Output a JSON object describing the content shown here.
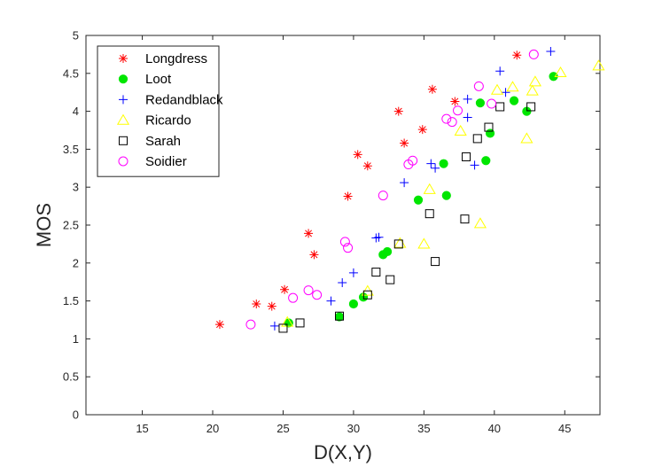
{
  "chart_data": {
    "type": "scatter",
    "title": "",
    "xlabel": "D(X,Y)",
    "ylabel": "MOS",
    "xlim": [
      11,
      47.5
    ],
    "ylim": [
      0,
      5
    ],
    "xticks": [
      15,
      20,
      25,
      30,
      35,
      40,
      45
    ],
    "yticks": [
      0,
      0.5,
      1,
      1.5,
      2,
      2.5,
      3,
      3.5,
      4,
      4.5,
      5
    ],
    "xtick_labels": [
      "15",
      "20",
      "25",
      "30",
      "35",
      "40",
      "45"
    ],
    "ytick_labels": [
      "0",
      "0.5",
      "1",
      "1.5",
      "2",
      "2.5",
      "3",
      "3.5",
      "4",
      "4.5",
      "5"
    ],
    "grid": false,
    "legend_position": "top-left",
    "series": [
      {
        "name": "Longdress",
        "marker": "asterisk",
        "color": "#ff0000",
        "points": [
          [
            20.5,
            1.19
          ],
          [
            23.1,
            1.46
          ],
          [
            24.2,
            1.43
          ],
          [
            25.1,
            1.65
          ],
          [
            26.8,
            2.39
          ],
          [
            27.2,
            2.11
          ],
          [
            29.6,
            2.88
          ],
          [
            30.3,
            3.43
          ],
          [
            31.0,
            3.28
          ],
          [
            33.2,
            4.0
          ],
          [
            33.6,
            3.58
          ],
          [
            34.9,
            3.76
          ],
          [
            35.6,
            4.29
          ],
          [
            37.2,
            4.13
          ],
          [
            41.6,
            4.74
          ]
        ]
      },
      {
        "name": "Loot",
        "marker": "filled-circle",
        "color": "#00e600",
        "points": [
          [
            25.4,
            1.21
          ],
          [
            29.0,
            1.29
          ],
          [
            30.0,
            1.46
          ],
          [
            30.7,
            1.55
          ],
          [
            32.1,
            2.11
          ],
          [
            32.4,
            2.15
          ],
          [
            34.6,
            2.83
          ],
          [
            36.4,
            3.31
          ],
          [
            36.6,
            2.89
          ],
          [
            39.0,
            4.11
          ],
          [
            39.4,
            3.35
          ],
          [
            39.7,
            3.71
          ],
          [
            41.4,
            4.14
          ],
          [
            42.3,
            4.0
          ],
          [
            44.2,
            4.46
          ]
        ]
      },
      {
        "name": "Redandblack",
        "marker": "plus",
        "color": "#0000ff",
        "points": [
          [
            24.4,
            1.17
          ],
          [
            28.4,
            1.5
          ],
          [
            29.2,
            1.74
          ],
          [
            30.0,
            1.87
          ],
          [
            31.6,
            2.33
          ],
          [
            31.8,
            2.34
          ],
          [
            33.6,
            3.06
          ],
          [
            35.5,
            3.31
          ],
          [
            35.8,
            3.25
          ],
          [
            38.1,
            4.16
          ],
          [
            38.1,
            3.92
          ],
          [
            38.6,
            3.29
          ],
          [
            40.4,
            4.53
          ],
          [
            40.8,
            4.25
          ],
          [
            44.0,
            4.79
          ]
        ]
      },
      {
        "name": "Ricardo",
        "marker": "triangle",
        "color": "#ffff00",
        "points": [
          [
            25.3,
            1.22
          ],
          [
            31.0,
            1.63
          ],
          [
            33.3,
            2.26
          ],
          [
            35.0,
            2.25
          ],
          [
            35.4,
            2.97
          ],
          [
            37.6,
            3.74
          ],
          [
            39.0,
            2.52
          ],
          [
            40.2,
            4.28
          ],
          [
            41.3,
            4.32
          ],
          [
            42.3,
            3.64
          ],
          [
            42.7,
            4.27
          ],
          [
            42.9,
            4.39
          ],
          [
            44.7,
            4.51
          ],
          [
            47.4,
            4.6
          ]
        ]
      },
      {
        "name": "Sarah",
        "marker": "square",
        "color": "#000000",
        "points": [
          [
            25.0,
            1.14
          ],
          [
            26.2,
            1.21
          ],
          [
            29.0,
            1.3
          ],
          [
            31.0,
            1.58
          ],
          [
            31.6,
            1.88
          ],
          [
            32.6,
            1.78
          ],
          [
            33.2,
            2.25
          ],
          [
            35.4,
            2.65
          ],
          [
            35.8,
            2.02
          ],
          [
            37.9,
            2.58
          ],
          [
            38.0,
            3.4
          ],
          [
            38.8,
            3.64
          ],
          [
            39.6,
            3.79
          ],
          [
            40.4,
            4.06
          ],
          [
            42.6,
            4.06
          ]
        ]
      },
      {
        "name": "Soidier",
        "marker": "open-circle",
        "color": "#ff00ff",
        "points": [
          [
            22.7,
            1.19
          ],
          [
            25.7,
            1.54
          ],
          [
            26.8,
            1.64
          ],
          [
            27.4,
            1.58
          ],
          [
            29.4,
            2.28
          ],
          [
            29.6,
            2.2
          ],
          [
            32.1,
            2.89
          ],
          [
            33.9,
            3.3
          ],
          [
            34.2,
            3.35
          ],
          [
            36.6,
            3.9
          ],
          [
            37.0,
            3.86
          ],
          [
            37.4,
            4.01
          ],
          [
            38.9,
            4.33
          ],
          [
            39.8,
            4.1
          ],
          [
            42.8,
            4.75
          ]
        ]
      }
    ]
  }
}
